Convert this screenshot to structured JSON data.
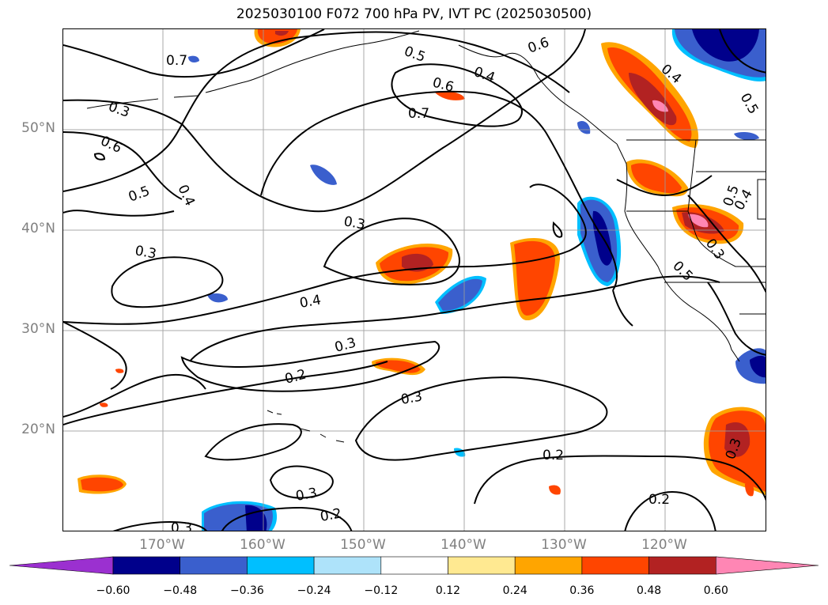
{
  "title": "2025030100 F072 700 hPa PV, IVT PC (2025030500)",
  "lat_labels": [
    "50°N",
    "40°N",
    "30°N",
    "20°N"
  ],
  "lon_labels": [
    "170°W",
    "160°W",
    "150°W",
    "140°W",
    "130°W",
    "120°W"
  ],
  "colorbar": {
    "ticks": [
      "−0.60",
      "−0.48",
      "−0.36",
      "−0.24",
      "−0.12",
      "0.12",
      "0.24",
      "0.36",
      "0.48",
      "0.60"
    ],
    "colors": [
      "#9b30d0",
      "#00008b",
      "#3a5fcd",
      "#00bfff",
      "#aee3fa",
      "#ffffff",
      "#ffe991",
      "#ffa500",
      "#ff4500",
      "#b22222",
      "#ff86b4"
    ]
  },
  "contour_labels": [
    "0.7",
    "0.5",
    "0.6",
    "0.4",
    "0.3",
    "0.6",
    "0.7",
    "0.6",
    "0.4",
    "0.5",
    "0.4",
    "0.5",
    "0.3",
    "0.3",
    "0.4",
    "0.3",
    "0.2",
    "0.3",
    "0.2",
    "0.3",
    "0.2",
    "0.3",
    "0.2",
    "0.5",
    "0.3",
    "0.5",
    "0.3",
    "0.4"
  ],
  "colors": {
    "contour": "#000000",
    "gridline": "#9a9a9a",
    "coastline": "#000000"
  }
}
